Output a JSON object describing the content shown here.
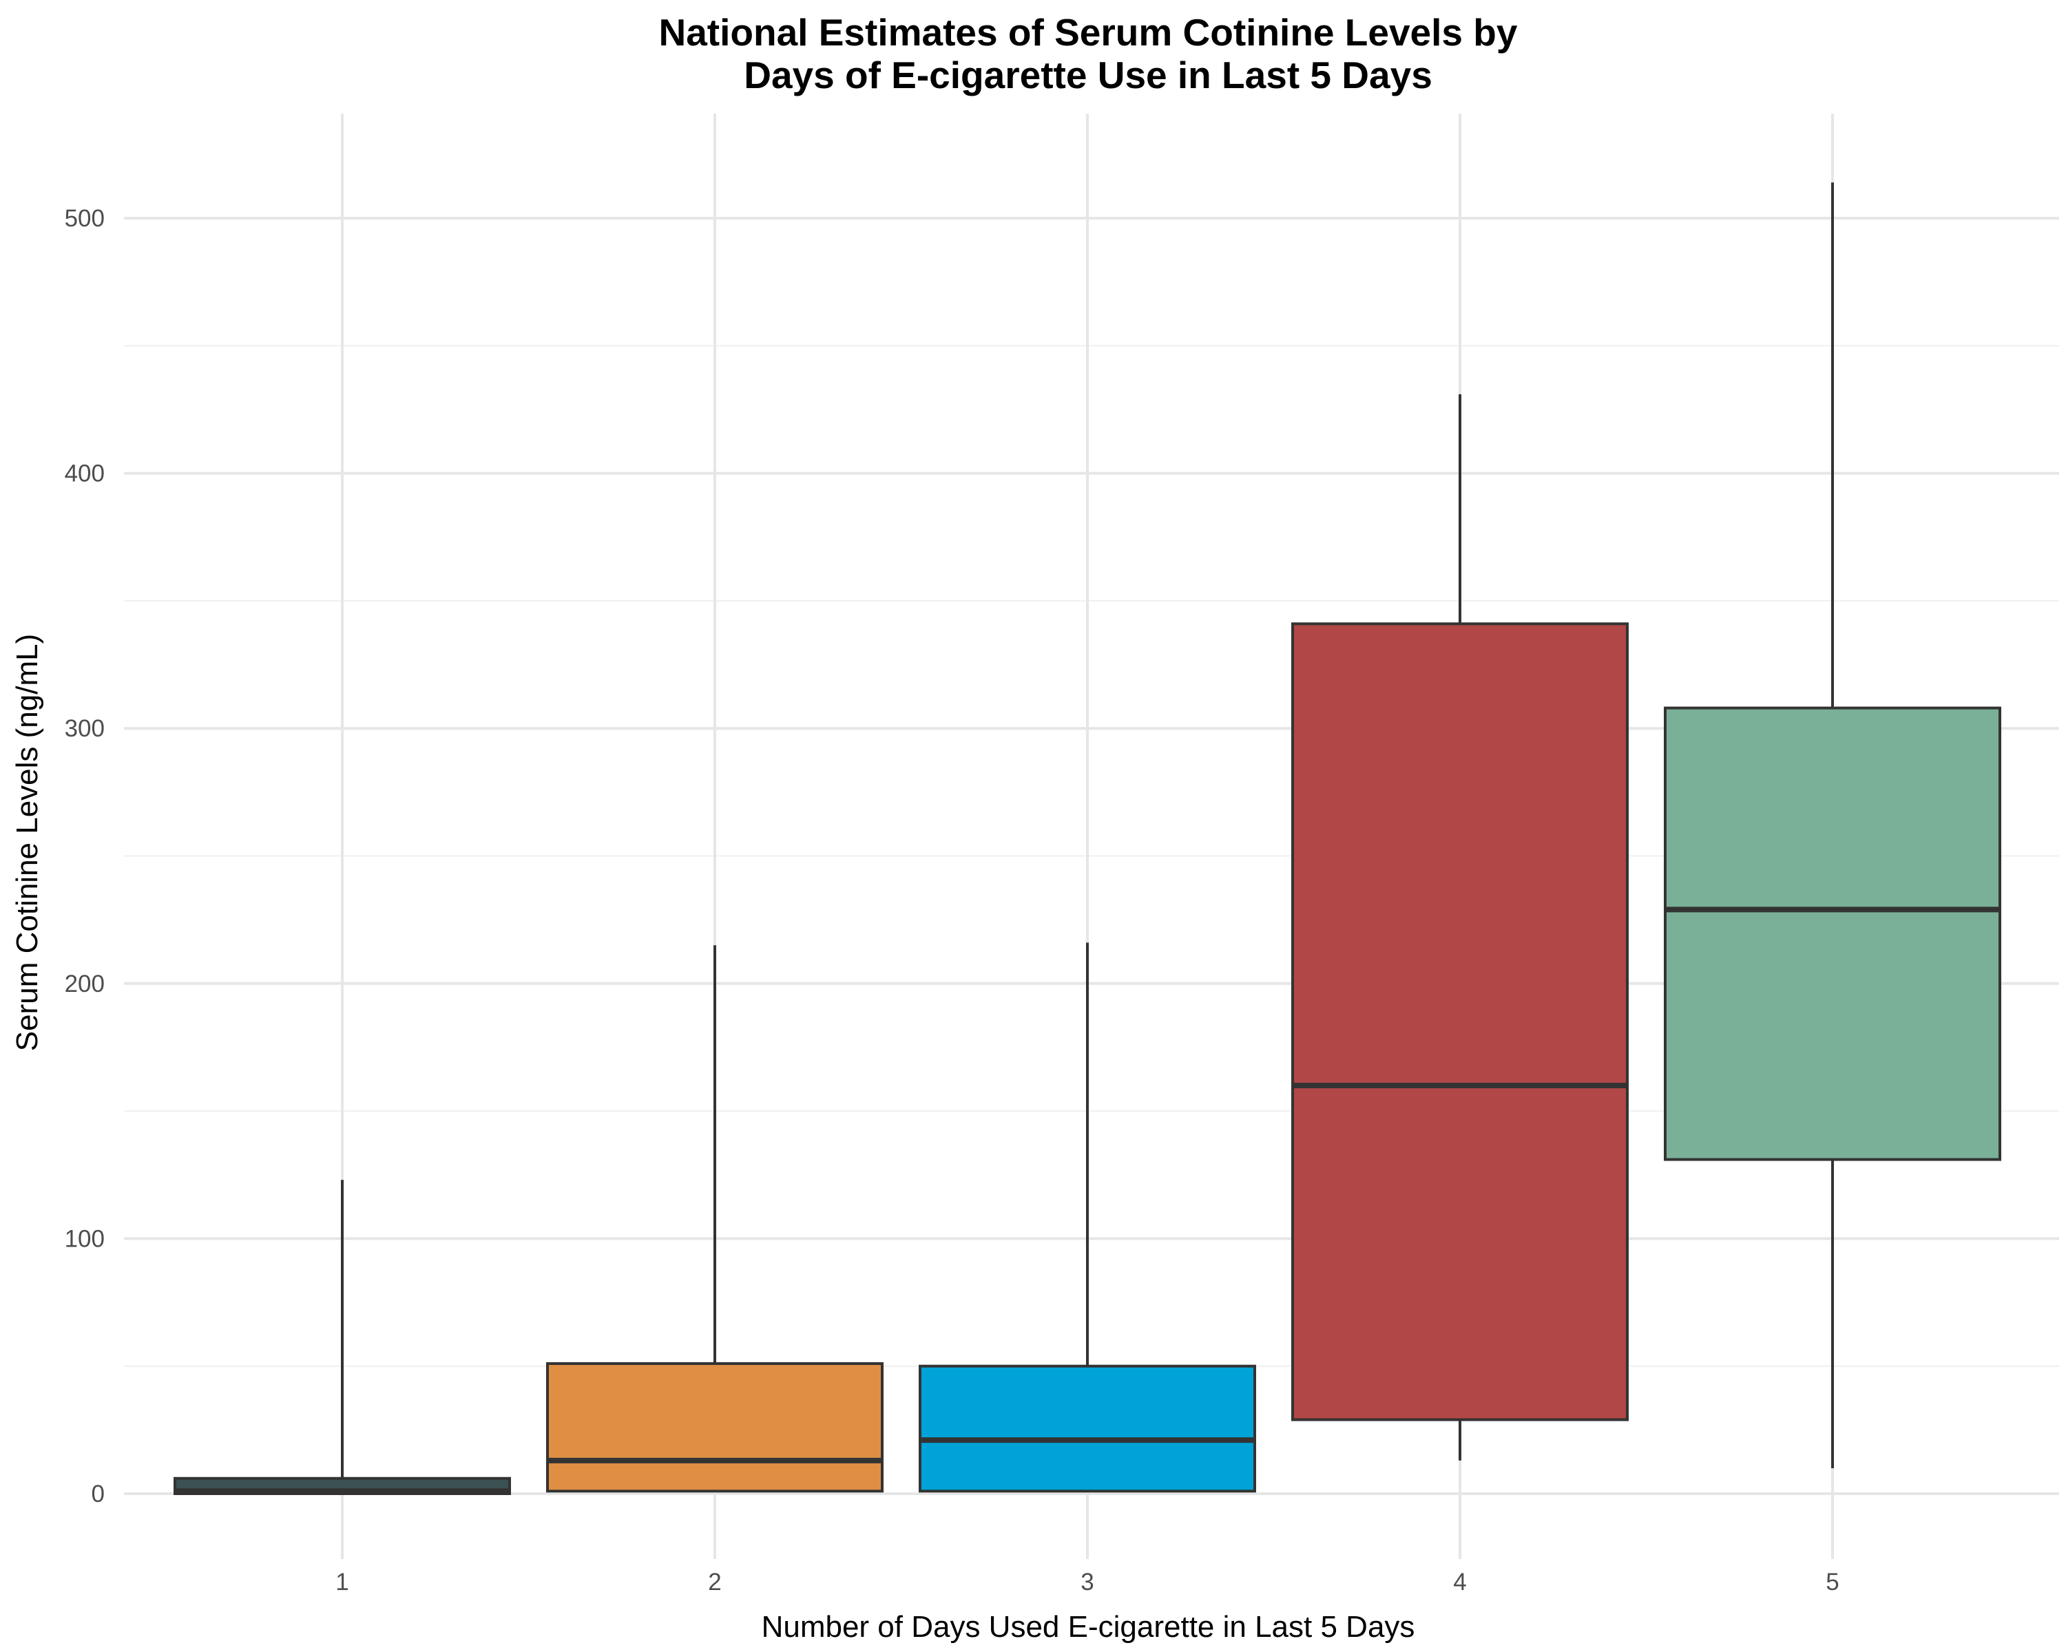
{
  "chart_data": {
    "type": "box",
    "title_lines": [
      "National Estimates of Serum Cotinine Levels by",
      "Days of E-cigarette Use in Last 5 Days"
    ],
    "xlabel": "Number of Days Used E-cigarette in Last 5 Days",
    "ylabel": "Serum Cotinine Levels (ng/mL)",
    "categories": [
      "1",
      "2",
      "3",
      "4",
      "5"
    ],
    "ylim": [
      -25,
      545
    ],
    "y_ticks": [
      0,
      100,
      200,
      300,
      400,
      500
    ],
    "y_minor_ticks": [
      50,
      150,
      250,
      350,
      450
    ],
    "grid": true,
    "legend": "none",
    "boxes": [
      {
        "category": "1",
        "whisker_low": 0,
        "q1": 0,
        "median": 1,
        "q3": 6,
        "whisker_high": 123,
        "color": "#3b5154"
      },
      {
        "category": "2",
        "whisker_low": 1,
        "q1": 1,
        "median": 13,
        "q3": 51,
        "whisker_high": 215,
        "color": "#df8e43"
      },
      {
        "category": "3",
        "whisker_low": 1,
        "q1": 1,
        "median": 21,
        "q3": 50,
        "whisker_high": 216,
        "color": "#00a3d7"
      },
      {
        "category": "4",
        "whisker_low": 13,
        "q1": 29,
        "median": 160,
        "q3": 341,
        "whisker_high": 431,
        "color": "#b14747"
      },
      {
        "category": "5",
        "whisker_low": 10,
        "q1": 131,
        "median": 229,
        "q3": 308,
        "whisker_high": 514,
        "color": "#7ab097"
      }
    ]
  }
}
